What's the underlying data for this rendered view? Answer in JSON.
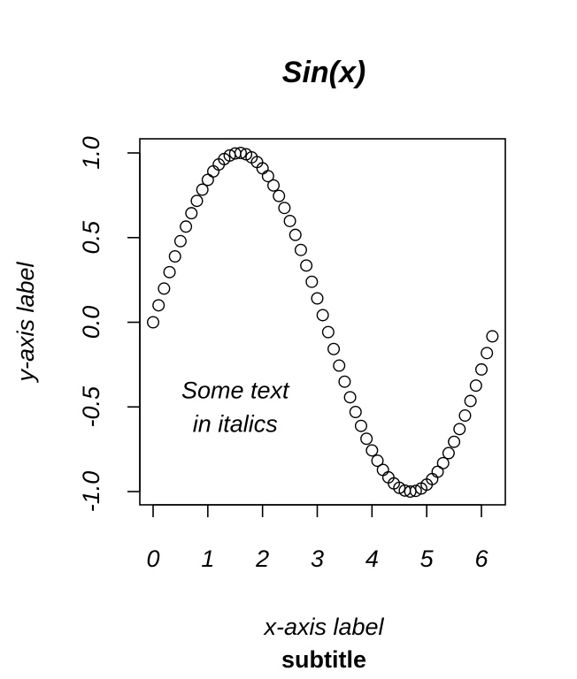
{
  "chart_data": {
    "type": "scatter",
    "title": "Sin(x)",
    "subtitle": "subtitle",
    "xlabel": "x-axis label",
    "ylabel": "y-axis label",
    "xlim": [
      0,
      6.2
    ],
    "ylim": [
      -1,
      1
    ],
    "x_ticks": [
      0,
      1,
      2,
      3,
      4,
      5,
      6
    ],
    "x_tick_labels": [
      "0",
      "1",
      "2",
      "3",
      "4",
      "5",
      "6"
    ],
    "y_ticks": [
      -1,
      -0.5,
      0,
      0.5,
      1
    ],
    "y_tick_labels": [
      "-1.0",
      "-0.5",
      "0.0",
      "0.5",
      "1.0"
    ],
    "grid": false,
    "legend": "none",
    "marker": "open-circle",
    "annotations": [
      {
        "lines": [
          "Some text",
          "in italics"
        ],
        "x": 1.5,
        "y": -0.5
      }
    ],
    "series": [
      {
        "x": [
          0,
          0.1,
          0.2,
          0.3,
          0.4,
          0.5,
          0.6,
          0.7,
          0.8,
          0.9,
          1.0,
          1.1,
          1.2,
          1.3,
          1.4,
          1.5,
          1.6,
          1.7,
          1.8,
          1.9,
          2.0,
          2.1,
          2.2,
          2.3,
          2.4,
          2.5,
          2.6,
          2.7,
          2.8,
          2.9,
          3.0,
          3.1,
          3.2,
          3.3,
          3.4,
          3.5,
          3.6,
          3.7,
          3.8,
          3.9,
          4.0,
          4.1,
          4.2,
          4.3,
          4.4,
          4.5,
          4.6,
          4.7,
          4.8,
          4.9,
          5.0,
          5.1,
          5.2,
          5.3,
          5.4,
          5.5,
          5.6,
          5.7,
          5.8,
          5.9,
          6.0,
          6.1,
          6.2
        ],
        "y": [
          0.0,
          0.1,
          0.199,
          0.296,
          0.389,
          0.479,
          0.565,
          0.644,
          0.717,
          0.783,
          0.841,
          0.891,
          0.932,
          0.964,
          0.985,
          0.997,
          1.0,
          0.992,
          0.974,
          0.946,
          0.909,
          0.863,
          0.808,
          0.746,
          0.675,
          0.598,
          0.516,
          0.427,
          0.335,
          0.239,
          0.141,
          0.042,
          -0.058,
          -0.158,
          -0.256,
          -0.351,
          -0.443,
          -0.53,
          -0.612,
          -0.688,
          -0.757,
          -0.818,
          -0.872,
          -0.916,
          -0.952,
          -0.978,
          -0.994,
          -1.0,
          -0.996,
          -0.982,
          -0.959,
          -0.926,
          -0.883,
          -0.832,
          -0.773,
          -0.706,
          -0.631,
          -0.551,
          -0.465,
          -0.374,
          -0.279,
          -0.182,
          -0.083
        ]
      }
    ]
  }
}
